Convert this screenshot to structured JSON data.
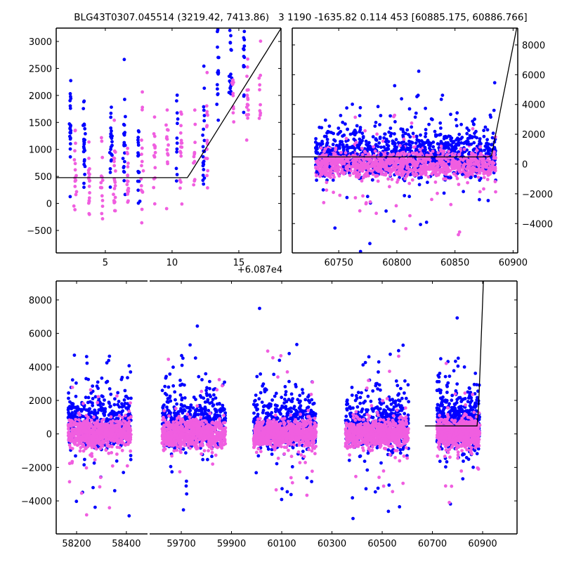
{
  "title": "BLG43T0307.045514 (3219.42, 7413.86)   3 1190 -1635.82 0.114 453 [60885.175, 60886.766]",
  "colors": {
    "blue": "#0000ff",
    "pink": "#f05ee0",
    "model": "#000000"
  },
  "model": {
    "baseline": 477,
    "t_break": 60881.16,
    "slope_per_day": 395
  },
  "chart_data": [
    {
      "panel": "zoom-last-nights",
      "type": "scatter",
      "xlim": [
        1.32,
        18.16
      ],
      "x_offset": 60870,
      "x_offset_label": "+6.087e4",
      "ylim": [
        -916,
        3247
      ],
      "xticks": [
        5,
        10,
        15
      ],
      "yticks": [
        -500,
        0,
        500,
        1000,
        1500,
        2000,
        2500,
        3000
      ],
      "ytick_side": "left",
      "series": [
        {
          "name": "blue",
          "color": "#0000ff",
          "nights": [
            {
              "x": 2.37,
              "mean": 1100,
              "sd": 600,
              "n": 22
            },
            {
              "x": 3.42,
              "mean": 1050,
              "sd": 450,
              "n": 24
            },
            {
              "x": 5.42,
              "mean": 900,
              "sd": 400,
              "n": 22
            },
            {
              "x": 6.42,
              "mean": 1100,
              "sd": 650,
              "n": 24
            },
            {
              "x": 7.47,
              "mean": 900,
              "sd": 450,
              "n": 18
            },
            {
              "x": 10.37,
              "mean": 1300,
              "sd": 500,
              "n": 12
            },
            {
              "x": 12.37,
              "mean": 1300,
              "sd": 900,
              "n": 22
            },
            {
              "x": 13.42,
              "mean": 2500,
              "sd": 450,
              "n": 18
            },
            {
              "x": 14.37,
              "mean": 2550,
              "sd": 450,
              "n": 20
            },
            {
              "x": 15.37,
              "mean": 2700,
              "sd": 400,
              "n": 18
            }
          ]
        },
        {
          "name": "pink",
          "color": "#f05ee0",
          "nights": [
            {
              "x": 2.74,
              "mean": 500,
              "sd": 450,
              "n": 16
            },
            {
              "x": 3.79,
              "mean": 450,
              "sd": 450,
              "n": 18
            },
            {
              "x": 4.74,
              "mean": 400,
              "sd": 450,
              "n": 14
            },
            {
              "x": 5.68,
              "mean": 450,
              "sd": 400,
              "n": 22
            },
            {
              "x": 6.68,
              "mean": 550,
              "sd": 400,
              "n": 18
            },
            {
              "x": 7.74,
              "mean": 700,
              "sd": 450,
              "n": 16
            },
            {
              "x": 8.68,
              "mean": 900,
              "sd": 400,
              "n": 14
            },
            {
              "x": 9.63,
              "mean": 1000,
              "sd": 450,
              "n": 14
            },
            {
              "x": 10.68,
              "mean": 1000,
              "sd": 450,
              "n": 16
            },
            {
              "x": 11.68,
              "mean": 1100,
              "sd": 450,
              "n": 12
            },
            {
              "x": 12.63,
              "mean": 1100,
              "sd": 450,
              "n": 16
            },
            {
              "x": 14.58,
              "mean": 2000,
              "sd": 350,
              "n": 10
            },
            {
              "x": 15.63,
              "mean": 2000,
              "sd": 450,
              "n": 16
            },
            {
              "x": 16.58,
              "mean": 2100,
              "sd": 500,
              "n": 10
            }
          ]
        }
      ]
    },
    {
      "panel": "last-season",
      "type": "scatter",
      "xlim": [
        60710,
        60904
      ],
      "ylim": [
        -5970,
        9130
      ],
      "xticks": [
        60750,
        60800,
        60850,
        60900
      ],
      "yticks": [
        -4000,
        -2000,
        0,
        2000,
        4000,
        6000,
        8000
      ],
      "ytick_side": "right",
      "season": [
        60730,
        60885
      ]
    },
    {
      "panel": "full-lightcurve",
      "type": "scatter",
      "broken_x": [
        [
          58118,
          58485
        ],
        [
          59574,
          61037
        ]
      ],
      "ylim": [
        -5970,
        9130
      ],
      "xticks": [
        [
          58200,
          58400
        ],
        [
          59700,
          59900,
          60100,
          60300,
          60500,
          60700,
          60900
        ]
      ],
      "yticks": [
        -4000,
        -2000,
        0,
        2000,
        4000,
        6000,
        8000
      ],
      "ytick_side": "left",
      "model_start": 60670,
      "seasons": [
        [
          58166,
          58419
        ],
        [
          59624,
          59876
        ],
        [
          59988,
          60237
        ],
        [
          60354,
          60606
        ],
        [
          60718,
          60889
        ]
      ],
      "series": [
        {
          "name": "blue",
          "color": "#0000ff",
          "mean": 500,
          "sd": 700,
          "outlier_sd": 2600,
          "n_per_season": 520
        },
        {
          "name": "pink",
          "color": "#f05ee0",
          "mean": 0,
          "sd": 420,
          "outlier_sd": 1700,
          "n_per_season": 700
        }
      ]
    }
  ]
}
